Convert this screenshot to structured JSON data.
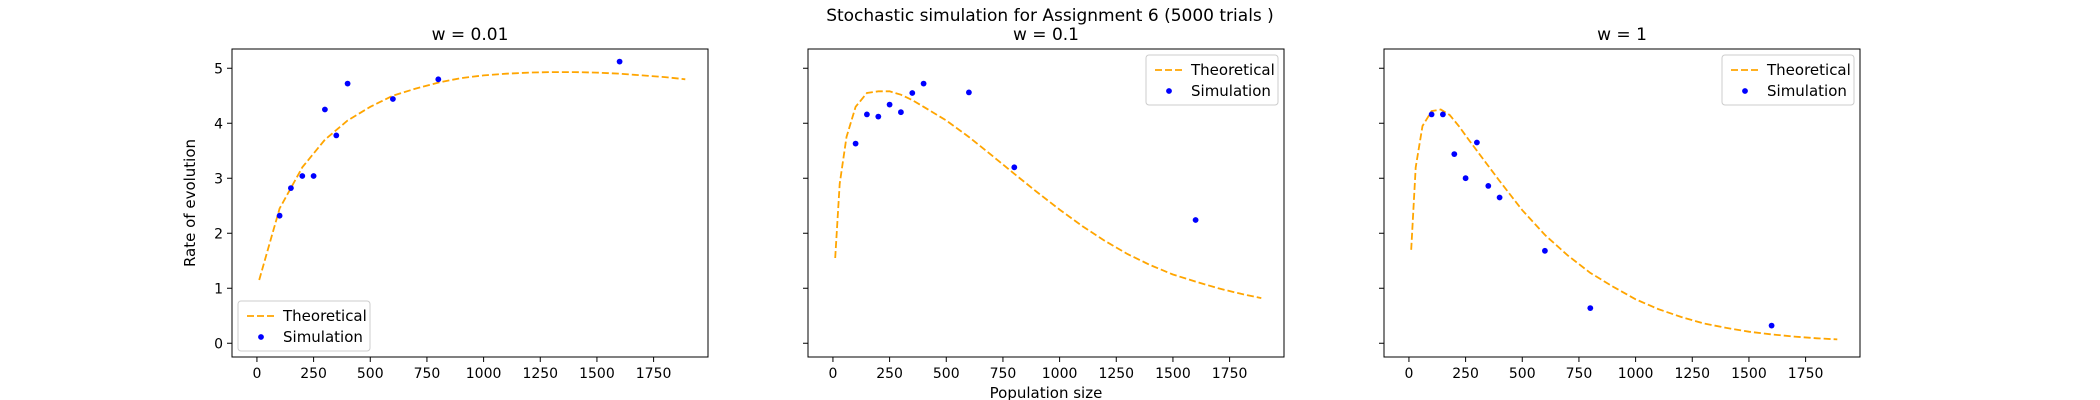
{
  "figure": {
    "suptitle": "Stochastic simulation for Assignment 6 (5000 trials )",
    "xlabel": "Population size",
    "ylabel": "Rate of evolution",
    "colors": {
      "theoretical": "#FFA500",
      "simulation": "#0000FF"
    }
  },
  "chart_data": [
    {
      "type": "line",
      "title": "w = 0.01",
      "xlabel": "",
      "ylabel": "Rate of evolution",
      "xlim": [
        -110,
        1990
      ],
      "ylim": [
        -0.25,
        5.35
      ],
      "xticks": [
        0,
        250,
        500,
        750,
        1000,
        1250,
        1500,
        1750
      ],
      "yticks": [
        0,
        1,
        2,
        3,
        4,
        5
      ],
      "grid": false,
      "legend": "lower left",
      "series": [
        {
          "name": "Theoretical",
          "style": "dashed line",
          "x": [
            10,
            100,
            200,
            300,
            400,
            500,
            600,
            700,
            800,
            900,
            1000,
            1100,
            1200,
            1300,
            1400,
            1500,
            1600,
            1700,
            1800,
            1890
          ],
          "y": [
            1.15,
            2.45,
            3.2,
            3.7,
            4.05,
            4.3,
            4.5,
            4.63,
            4.74,
            4.82,
            4.87,
            4.9,
            4.92,
            4.93,
            4.93,
            4.92,
            4.9,
            4.87,
            4.84,
            4.8
          ]
        },
        {
          "name": "Simulation",
          "style": "points",
          "x": [
            100,
            150,
            200,
            250,
            300,
            350,
            400,
            600,
            800,
            1600
          ],
          "y": [
            2.32,
            2.82,
            3.04,
            3.04,
            4.25,
            3.78,
            4.72,
            4.44,
            4.8,
            5.12
          ]
        }
      ]
    },
    {
      "type": "line",
      "title": "w = 0.1",
      "xlabel": "Population size",
      "ylabel": "",
      "xlim": [
        -110,
        1990
      ],
      "ylim": [
        -0.25,
        5.35
      ],
      "xticks": [
        0,
        250,
        500,
        750,
        1000,
        1250,
        1500,
        1750
      ],
      "yticks": [
        0,
        1,
        2,
        3,
        4,
        5
      ],
      "grid": false,
      "legend": "upper right",
      "series": [
        {
          "name": "Theoretical",
          "style": "dashed line",
          "x": [
            10,
            30,
            60,
            100,
            150,
            200,
            250,
            300,
            350,
            400,
            500,
            600,
            700,
            800,
            900,
            1000,
            1100,
            1200,
            1300,
            1400,
            1500,
            1600,
            1700,
            1800,
            1890
          ],
          "y": [
            1.55,
            2.9,
            3.75,
            4.3,
            4.55,
            4.58,
            4.58,
            4.52,
            4.42,
            4.3,
            4.05,
            3.75,
            3.42,
            3.08,
            2.75,
            2.43,
            2.13,
            1.86,
            1.62,
            1.42,
            1.25,
            1.12,
            1.0,
            0.9,
            0.82
          ]
        },
        {
          "name": "Simulation",
          "style": "points",
          "x": [
            100,
            150,
            200,
            250,
            300,
            350,
            400,
            600,
            800,
            1600
          ],
          "y": [
            3.63,
            4.16,
            4.12,
            4.34,
            4.2,
            4.55,
            4.72,
            4.56,
            3.2,
            2.24
          ]
        }
      ]
    },
    {
      "type": "line",
      "title": "w = 1",
      "xlabel": "",
      "ylabel": "",
      "xlim": [
        -110,
        1990
      ],
      "ylim": [
        -0.25,
        5.35
      ],
      "xticks": [
        0,
        250,
        500,
        750,
        1000,
        1250,
        1500,
        1750
      ],
      "yticks": [
        0,
        1,
        2,
        3,
        4,
        5
      ],
      "grid": false,
      "legend": "upper right",
      "series": [
        {
          "name": "Theoretical",
          "style": "dashed line",
          "x": [
            10,
            30,
            60,
            100,
            140,
            180,
            220,
            260,
            300,
            400,
            500,
            600,
            700,
            800,
            900,
            1000,
            1100,
            1200,
            1300,
            1400,
            1500,
            1600,
            1700,
            1800,
            1890
          ],
          "y": [
            1.7,
            3.2,
            3.95,
            4.22,
            4.25,
            4.15,
            3.95,
            3.72,
            3.5,
            2.95,
            2.42,
            1.97,
            1.6,
            1.28,
            1.03,
            0.8,
            0.62,
            0.48,
            0.36,
            0.28,
            0.21,
            0.16,
            0.12,
            0.09,
            0.07
          ]
        },
        {
          "name": "Simulation",
          "style": "points",
          "x": [
            100,
            150,
            200,
            250,
            300,
            350,
            400,
            600,
            800,
            1600
          ],
          "y": [
            4.16,
            4.16,
            3.44,
            3.0,
            3.65,
            2.86,
            2.65,
            1.68,
            0.64,
            0.32
          ]
        }
      ]
    }
  ]
}
